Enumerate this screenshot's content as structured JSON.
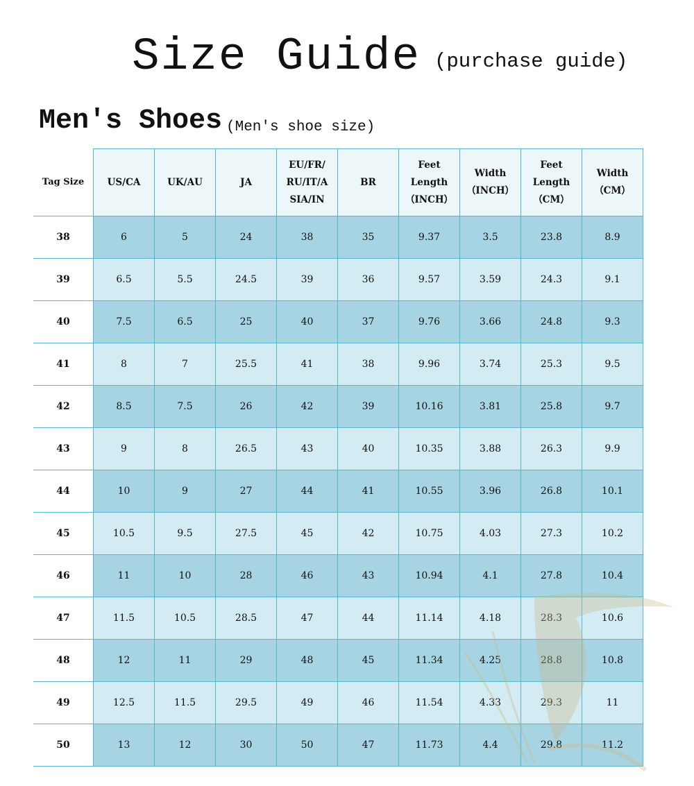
{
  "title": "Size Guide",
  "subtitle": "(purchase guide)",
  "section_title": "Men's Shoes",
  "section_subtitle": "(Men's shoe size)",
  "columns": [
    "Tag Size",
    "US/CA",
    "UK/AU",
    "JA",
    "EU/FR/ RU/IT/A SIA/IN",
    "BR",
    "Feet Length （INCH）",
    "Width （INCH）",
    "Feet Length （CM）",
    "Width （CM）"
  ],
  "rows": [
    [
      "38",
      "6",
      "5",
      "24",
      "38",
      "35",
      "9.37",
      "3.5",
      "23.8",
      "8.9"
    ],
    [
      "39",
      "6.5",
      "5.5",
      "24.5",
      "39",
      "36",
      "9.57",
      "3.59",
      "24.3",
      "9.1"
    ],
    [
      "40",
      "7.5",
      "6.5",
      "25",
      "40",
      "37",
      "9.76",
      "3.66",
      "24.8",
      "9.3"
    ],
    [
      "41",
      "8",
      "7",
      "25.5",
      "41",
      "38",
      "9.96",
      "3.74",
      "25.3",
      "9.5"
    ],
    [
      "42",
      "8.5",
      "7.5",
      "26",
      "42",
      "39",
      "10.16",
      "3.81",
      "25.8",
      "9.7"
    ],
    [
      "43",
      "9",
      "8",
      "26.5",
      "43",
      "40",
      "10.35",
      "3.88",
      "26.3",
      "9.9"
    ],
    [
      "44",
      "10",
      "9",
      "27",
      "44",
      "41",
      "10.55",
      "3.96",
      "26.8",
      "10.1"
    ],
    [
      "45",
      "10.5",
      "9.5",
      "27.5",
      "45",
      "42",
      "10.75",
      "4.03",
      "27.3",
      "10.2"
    ],
    [
      "46",
      "11",
      "10",
      "28",
      "46",
      "43",
      "10.94",
      "4.1",
      "27.8",
      "10.4"
    ],
    [
      "47",
      "11.5",
      "10.5",
      "28.5",
      "47",
      "44",
      "11.14",
      "4.18",
      "28.3",
      "10.6"
    ],
    [
      "48",
      "12",
      "11",
      "29",
      "48",
      "45",
      "11.34",
      "4.25",
      "28.8",
      "10.8"
    ],
    [
      "49",
      "12.5",
      "11.5",
      "29.5",
      "49",
      "46",
      "11.54",
      "4.33",
      "29.3",
      "11"
    ],
    [
      "50",
      "13",
      "12",
      "30",
      "50",
      "47",
      "11.73",
      "4.4",
      "29.8",
      "11.2"
    ]
  ],
  "colors": {
    "header": "#edf6f9",
    "row_dark": "#a6d4e2",
    "row_light": "#d3ebf2",
    "border": "#5ab4cc"
  }
}
